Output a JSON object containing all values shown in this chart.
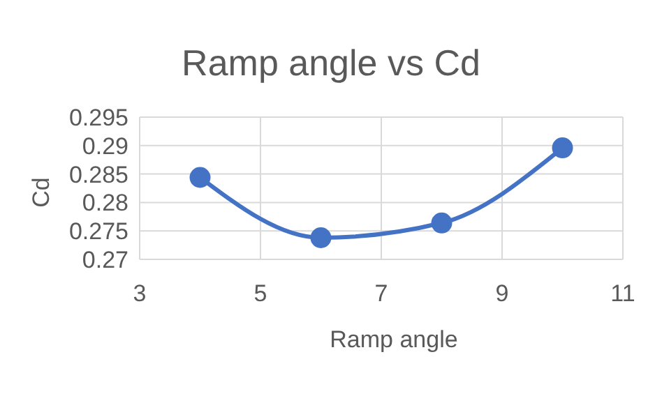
{
  "chart_data": {
    "type": "line",
    "title": "Ramp angle vs Cd",
    "xlabel": "Ramp angle",
    "ylabel": "Cd",
    "x": [
      4,
      6,
      8,
      10
    ],
    "series": [
      {
        "color": "#4472c4",
        "values": [
          0.2844,
          0.2738,
          0.2764,
          0.2896
        ]
      }
    ],
    "xlim": [
      3,
      11
    ],
    "xticks": [
      3,
      5,
      7,
      9,
      11
    ],
    "ylim": [
      0.27,
      0.295
    ],
    "yticks": [
      0.27,
      0.275,
      0.28,
      0.285,
      0.29,
      0.295
    ],
    "grid": true,
    "marker": "circle",
    "line_style": "solid"
  }
}
